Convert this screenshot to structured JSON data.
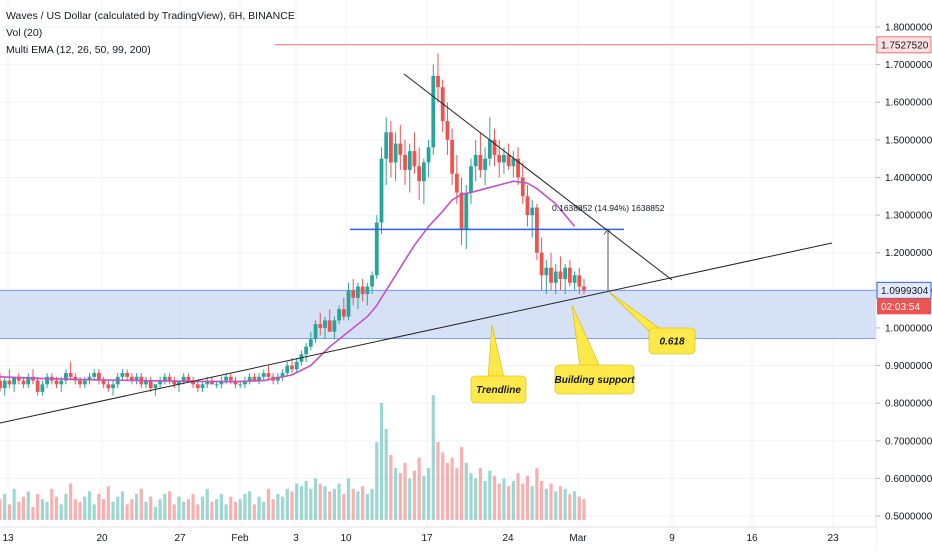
{
  "header": {
    "title": "Waves / US Dollar (calculated by TradingView), 6H, BINANCE",
    "vol": "Vol (20)",
    "ema": "Multi EMA (12, 26, 50, 99, 200)"
  },
  "colors": {
    "bull": "#26a69a",
    "bear": "#ef5350",
    "ema": "#c451c4",
    "zone_fill": "#cfdcf5",
    "zone_line": "#2962ff",
    "callout": "#ffe94a",
    "resistance": "#e57373",
    "price_badge": "#ef5350"
  },
  "chart_data": {
    "type": "candlestick",
    "title": "Waves / US Dollar (calculated by TradingView), 6H, BINANCE",
    "yaxis": {
      "min": 0.45,
      "max": 1.83,
      "ticks": [
        "1.8000000",
        "1.7000000",
        "1.6000000",
        "1.5000000",
        "1.4000000",
        "1.3000000",
        "1.2000000",
        "1.1000000",
        "1.0000000",
        "0.9000000",
        "0.8000000",
        "0.7000000",
        "0.6000000",
        "0.5000000"
      ]
    },
    "xaxis": {
      "ticks": [
        "13",
        "20",
        "27",
        "Feb",
        "3",
        "10",
        "17",
        "24",
        "Mar",
        "9",
        "16",
        "23"
      ]
    },
    "price_labels": {
      "resistance": "1.7527520",
      "current": "1.0999304",
      "countdown": "02:03:54"
    },
    "levels": {
      "resistance": 1.7527,
      "zone_top": 1.0999,
      "zone_bottom": 0.972,
      "blue_line": 1.262
    },
    "measurement": "0.1638852 (14.94%) 1638852",
    "annotations": [
      "Trendline",
      "Building support",
      "0.618"
    ],
    "candles": [
      [
        0.86,
        0.88,
        0.83,
        0.84
      ],
      [
        0.84,
        0.87,
        0.82,
        0.86
      ],
      [
        0.86,
        0.89,
        0.84,
        0.85
      ],
      [
        0.85,
        0.87,
        0.83,
        0.87
      ],
      [
        0.87,
        0.88,
        0.85,
        0.86
      ],
      [
        0.86,
        0.87,
        0.84,
        0.85
      ],
      [
        0.85,
        0.88,
        0.84,
        0.87
      ],
      [
        0.87,
        0.89,
        0.85,
        0.86
      ],
      [
        0.86,
        0.87,
        0.82,
        0.83
      ],
      [
        0.83,
        0.86,
        0.82,
        0.85
      ],
      [
        0.85,
        0.88,
        0.84,
        0.87
      ],
      [
        0.87,
        0.88,
        0.85,
        0.86
      ],
      [
        0.86,
        0.87,
        0.84,
        0.85
      ],
      [
        0.85,
        0.87,
        0.83,
        0.86
      ],
      [
        0.86,
        0.89,
        0.85,
        0.88
      ],
      [
        0.88,
        0.91,
        0.86,
        0.87
      ],
      [
        0.87,
        0.88,
        0.85,
        0.86
      ],
      [
        0.86,
        0.87,
        0.84,
        0.85
      ],
      [
        0.85,
        0.87,
        0.84,
        0.86
      ],
      [
        0.86,
        0.88,
        0.85,
        0.87
      ],
      [
        0.87,
        0.89,
        0.86,
        0.88
      ],
      [
        0.88,
        0.89,
        0.85,
        0.86
      ],
      [
        0.86,
        0.87,
        0.84,
        0.85
      ],
      [
        0.85,
        0.86,
        0.83,
        0.84
      ],
      [
        0.84,
        0.86,
        0.82,
        0.85
      ],
      [
        0.85,
        0.88,
        0.84,
        0.87
      ],
      [
        0.87,
        0.89,
        0.86,
        0.88
      ],
      [
        0.88,
        0.89,
        0.86,
        0.87
      ],
      [
        0.87,
        0.88,
        0.85,
        0.86
      ],
      [
        0.86,
        0.88,
        0.85,
        0.87
      ],
      [
        0.87,
        0.88,
        0.84,
        0.85
      ],
      [
        0.85,
        0.87,
        0.84,
        0.86
      ],
      [
        0.86,
        0.87,
        0.83,
        0.84
      ],
      [
        0.84,
        0.85,
        0.82,
        0.85
      ],
      [
        0.85,
        0.87,
        0.84,
        0.86
      ],
      [
        0.86,
        0.88,
        0.85,
        0.87
      ],
      [
        0.87,
        0.88,
        0.85,
        0.86
      ],
      [
        0.86,
        0.87,
        0.84,
        0.85
      ],
      [
        0.85,
        0.86,
        0.83,
        0.86
      ],
      [
        0.86,
        0.88,
        0.85,
        0.87
      ],
      [
        0.87,
        0.88,
        0.86,
        0.86
      ],
      [
        0.86,
        0.87,
        0.84,
        0.85
      ],
      [
        0.85,
        0.86,
        0.83,
        0.84
      ],
      [
        0.84,
        0.86,
        0.83,
        0.85
      ],
      [
        0.85,
        0.87,
        0.84,
        0.86
      ],
      [
        0.86,
        0.87,
        0.85,
        0.85
      ],
      [
        0.85,
        0.86,
        0.84,
        0.85
      ],
      [
        0.85,
        0.87,
        0.84,
        0.86
      ],
      [
        0.86,
        0.88,
        0.85,
        0.87
      ],
      [
        0.87,
        0.88,
        0.85,
        0.86
      ],
      [
        0.86,
        0.87,
        0.84,
        0.85
      ],
      [
        0.85,
        0.86,
        0.84,
        0.85
      ],
      [
        0.85,
        0.87,
        0.84,
        0.86
      ],
      [
        0.86,
        0.88,
        0.85,
        0.87
      ],
      [
        0.87,
        0.88,
        0.86,
        0.86
      ],
      [
        0.86,
        0.88,
        0.85,
        0.87
      ],
      [
        0.87,
        0.89,
        0.86,
        0.88
      ],
      [
        0.88,
        0.9,
        0.86,
        0.87
      ],
      [
        0.87,
        0.88,
        0.85,
        0.86
      ],
      [
        0.86,
        0.88,
        0.85,
        0.87
      ],
      [
        0.87,
        0.89,
        0.86,
        0.88
      ],
      [
        0.88,
        0.91,
        0.87,
        0.9
      ],
      [
        0.9,
        0.92,
        0.88,
        0.89
      ],
      [
        0.89,
        0.92,
        0.88,
        0.91
      ],
      [
        0.91,
        0.94,
        0.9,
        0.93
      ],
      [
        0.93,
        0.96,
        0.91,
        0.95
      ],
      [
        0.95,
        0.99,
        0.94,
        0.97
      ],
      [
        0.97,
        1.02,
        0.96,
        1.01
      ],
      [
        1.01,
        1.04,
        0.98,
        1.0
      ],
      [
        1.0,
        1.03,
        0.97,
        1.02
      ],
      [
        1.02,
        1.05,
        0.99,
        0.99
      ],
      [
        0.99,
        1.03,
        0.97,
        1.02
      ],
      [
        1.02,
        1.06,
        1.01,
        1.05
      ],
      [
        1.05,
        1.08,
        1.02,
        1.03
      ],
      [
        1.03,
        1.12,
        1.02,
        1.1
      ],
      [
        1.1,
        1.13,
        1.06,
        1.08
      ],
      [
        1.08,
        1.12,
        1.05,
        1.11
      ],
      [
        1.11,
        1.13,
        1.07,
        1.09
      ],
      [
        1.09,
        1.12,
        1.06,
        1.11
      ],
      [
        1.11,
        1.15,
        1.09,
        1.14
      ],
      [
        1.14,
        1.3,
        1.13,
        1.28
      ],
      [
        1.28,
        1.48,
        1.25,
        1.45
      ],
      [
        1.45,
        1.56,
        1.38,
        1.52
      ],
      [
        1.52,
        1.55,
        1.4,
        1.44
      ],
      [
        1.44,
        1.52,
        1.39,
        1.49
      ],
      [
        1.49,
        1.54,
        1.42,
        1.46
      ],
      [
        1.46,
        1.5,
        1.38,
        1.42
      ],
      [
        1.42,
        1.49,
        1.36,
        1.47
      ],
      [
        1.47,
        1.52,
        1.41,
        1.43
      ],
      [
        1.43,
        1.48,
        1.34,
        1.39
      ],
      [
        1.39,
        1.45,
        1.33,
        1.44
      ],
      [
        1.44,
        1.5,
        1.4,
        1.48
      ],
      [
        1.48,
        1.7,
        1.46,
        1.67
      ],
      [
        1.67,
        1.73,
        1.6,
        1.64
      ],
      [
        1.64,
        1.66,
        1.52,
        1.55
      ],
      [
        1.55,
        1.6,
        1.46,
        1.5
      ],
      [
        1.5,
        1.53,
        1.38,
        1.41
      ],
      [
        1.41,
        1.46,
        1.33,
        1.36
      ],
      [
        1.36,
        1.4,
        1.22,
        1.26
      ],
      [
        1.26,
        1.38,
        1.21,
        1.36
      ],
      [
        1.36,
        1.45,
        1.33,
        1.43
      ],
      [
        1.43,
        1.5,
        1.39,
        1.46
      ],
      [
        1.46,
        1.52,
        1.4,
        1.42
      ],
      [
        1.42,
        1.48,
        1.38,
        1.45
      ],
      [
        1.45,
        1.56,
        1.43,
        1.5
      ],
      [
        1.5,
        1.53,
        1.43,
        1.46
      ],
      [
        1.46,
        1.5,
        1.4,
        1.44
      ],
      [
        1.44,
        1.48,
        1.41,
        1.46
      ],
      [
        1.46,
        1.49,
        1.42,
        1.43
      ],
      [
        1.43,
        1.47,
        1.4,
        1.45
      ],
      [
        1.45,
        1.48,
        1.38,
        1.4
      ],
      [
        1.4,
        1.44,
        1.33,
        1.35
      ],
      [
        1.35,
        1.38,
        1.27,
        1.3
      ],
      [
        1.3,
        1.34,
        1.24,
        1.32
      ],
      [
        1.32,
        1.33,
        1.18,
        1.2
      ],
      [
        1.2,
        1.24,
        1.1,
        1.14
      ],
      [
        1.14,
        1.18,
        1.09,
        1.16
      ],
      [
        1.16,
        1.2,
        1.1,
        1.12
      ],
      [
        1.12,
        1.17,
        1.09,
        1.15
      ],
      [
        1.15,
        1.19,
        1.1,
        1.13
      ],
      [
        1.13,
        1.17,
        1.09,
        1.16
      ],
      [
        1.16,
        1.18,
        1.11,
        1.12
      ],
      [
        1.12,
        1.15,
        1.1,
        1.14
      ],
      [
        1.14,
        1.16,
        1.09,
        1.11
      ],
      [
        1.11,
        1.13,
        1.09,
        1.1
      ]
    ],
    "volume": [
      0.08,
      0.1,
      0.06,
      0.12,
      0.07,
      0.09,
      0.11,
      0.05,
      0.1,
      0.08,
      0.07,
      0.12,
      0.09,
      0.06,
      0.1,
      0.14,
      0.08,
      0.07,
      0.09,
      0.11,
      0.06,
      0.1,
      0.08,
      0.13,
      0.07,
      0.09,
      0.11,
      0.06,
      0.08,
      0.1,
      0.12,
      0.07,
      0.09,
      0.05,
      0.08,
      0.1,
      0.11,
      0.06,
      0.09,
      0.07,
      0.08,
      0.1,
      0.06,
      0.09,
      0.12,
      0.07,
      0.08,
      0.1,
      0.06,
      0.09,
      0.07,
      0.08,
      0.1,
      0.11,
      0.06,
      0.09,
      0.07,
      0.12,
      0.08,
      0.1,
      0.09,
      0.12,
      0.11,
      0.14,
      0.13,
      0.15,
      0.12,
      0.16,
      0.14,
      0.13,
      0.11,
      0.12,
      0.14,
      0.1,
      0.16,
      0.12,
      0.11,
      0.13,
      0.1,
      0.12,
      0.3,
      0.45,
      0.35,
      0.25,
      0.2,
      0.18,
      0.22,
      0.16,
      0.19,
      0.24,
      0.17,
      0.2,
      0.48,
      0.3,
      0.26,
      0.22,
      0.24,
      0.2,
      0.28,
      0.22,
      0.18,
      0.16,
      0.2,
      0.15,
      0.19,
      0.17,
      0.14,
      0.16,
      0.13,
      0.15,
      0.18,
      0.14,
      0.17,
      0.13,
      0.2,
      0.15,
      0.12,
      0.14,
      0.11,
      0.13,
      0.12,
      0.1,
      0.11,
      0.09,
      0.08
    ],
    "volume_max": 0.5,
    "ema_line": [
      [
        0,
        0.87
      ],
      [
        10,
        0.865
      ],
      [
        20,
        0.862
      ],
      [
        30,
        0.86
      ],
      [
        40,
        0.858
      ],
      [
        50,
        0.857
      ],
      [
        56,
        0.86
      ],
      [
        62,
        0.875
      ],
      [
        66,
        0.9
      ],
      [
        70,
        0.95
      ],
      [
        74,
        0.99
      ],
      [
        78,
        1.03
      ],
      [
        80,
        1.06
      ],
      [
        82,
        1.1
      ],
      [
        84,
        1.14
      ],
      [
        86,
        1.18
      ],
      [
        88,
        1.22
      ],
      [
        91,
        1.27
      ],
      [
        94,
        1.31
      ],
      [
        96,
        1.34
      ],
      [
        98,
        1.355
      ],
      [
        100,
        1.36
      ],
      [
        103,
        1.37
      ],
      [
        106,
        1.38
      ],
      [
        109,
        1.39
      ],
      [
        112,
        1.385
      ],
      [
        114,
        1.37
      ],
      [
        116,
        1.35
      ],
      [
        118,
        1.33
      ],
      [
        120,
        1.3
      ],
      [
        122,
        1.27
      ]
    ]
  }
}
